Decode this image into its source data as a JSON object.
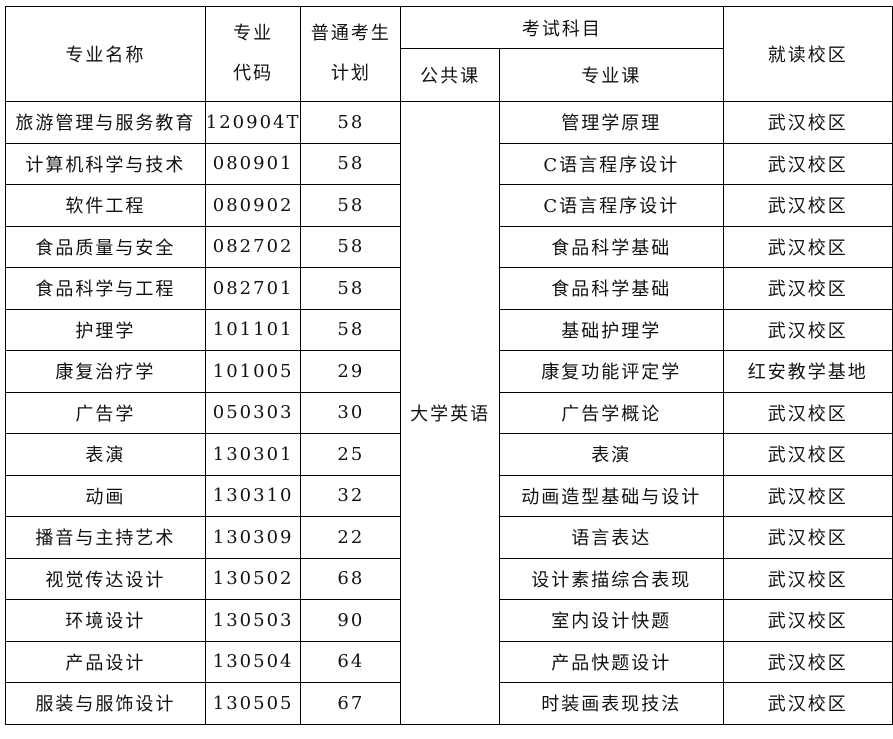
{
  "headers": {
    "major_name": "专业名称",
    "major_code_1": "专业",
    "major_code_2": "代码",
    "plan_1": "普通考生",
    "plan_2": "计划",
    "exam_subjects": "考试科目",
    "public_course": "公共课",
    "major_course": "专业课",
    "campus": "就读校区"
  },
  "public_course_value": "大学英语",
  "rows": [
    {
      "name": "旅游管理与服务教育",
      "code": "120904T",
      "plan": "58",
      "course": "管理学原理",
      "campus": "武汉校区"
    },
    {
      "name": "计算机科学与技术",
      "code": "080901",
      "plan": "58",
      "course": "C语言程序设计",
      "campus": "武汉校区"
    },
    {
      "name": "软件工程",
      "code": "080902",
      "plan": "58",
      "course": "C语言程序设计",
      "campus": "武汉校区"
    },
    {
      "name": "食品质量与安全",
      "code": "082702",
      "plan": "58",
      "course": "食品科学基础",
      "campus": "武汉校区"
    },
    {
      "name": "食品科学与工程",
      "code": "082701",
      "plan": "58",
      "course": "食品科学基础",
      "campus": "武汉校区"
    },
    {
      "name": "护理学",
      "code": "101101",
      "plan": "58",
      "course": "基础护理学",
      "campus": "武汉校区"
    },
    {
      "name": "康复治疗学",
      "code": "101005",
      "plan": "29",
      "course": "康复功能评定学",
      "campus": "红安教学基地"
    },
    {
      "name": "广告学",
      "code": "050303",
      "plan": "30",
      "course": "广告学概论",
      "campus": "武汉校区"
    },
    {
      "name": "表演",
      "code": "130301",
      "plan": "25",
      "course": "表演",
      "campus": "武汉校区"
    },
    {
      "name": "动画",
      "code": "130310",
      "plan": "32",
      "course": "动画造型基础与设计",
      "campus": "武汉校区"
    },
    {
      "name": "播音与主持艺术",
      "code": "130309",
      "plan": "22",
      "course": "语言表达",
      "campus": "武汉校区"
    },
    {
      "name": "视觉传达设计",
      "code": "130502",
      "plan": "68",
      "course": "设计素描综合表现",
      "campus": "武汉校区"
    },
    {
      "name": "环境设计",
      "code": "130503",
      "plan": "90",
      "course": "室内设计快题",
      "campus": "武汉校区"
    },
    {
      "name": "产品设计",
      "code": "130504",
      "plan": "64",
      "course": "产品快题设计",
      "campus": "武汉校区"
    },
    {
      "name": "服装与服饰设计",
      "code": "130505",
      "plan": "67",
      "course": "时装画表现技法",
      "campus": "武汉校区"
    }
  ]
}
